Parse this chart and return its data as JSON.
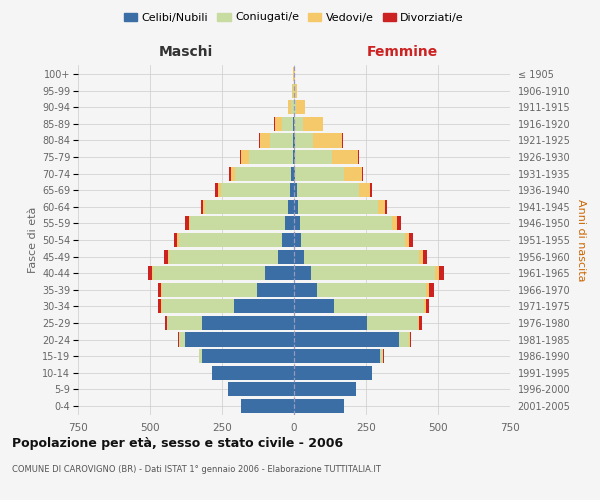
{
  "age_groups": [
    "0-4",
    "5-9",
    "10-14",
    "15-19",
    "20-24",
    "25-29",
    "30-34",
    "35-39",
    "40-44",
    "45-49",
    "50-54",
    "55-59",
    "60-64",
    "65-69",
    "70-74",
    "75-79",
    "80-84",
    "85-89",
    "90-94",
    "95-99",
    "100+"
  ],
  "birth_years": [
    "2001-2005",
    "1996-2000",
    "1991-1995",
    "1986-1990",
    "1981-1985",
    "1976-1980",
    "1971-1975",
    "1966-1970",
    "1961-1965",
    "1956-1960",
    "1951-1955",
    "1946-1950",
    "1941-1945",
    "1936-1940",
    "1931-1935",
    "1926-1930",
    "1921-1925",
    "1916-1920",
    "1911-1915",
    "1906-1910",
    "≤ 1905"
  ],
  "male": {
    "celibe": [
      185,
      230,
      285,
      320,
      380,
      320,
      210,
      130,
      100,
      55,
      40,
      30,
      20,
      15,
      10,
      5,
      3,
      2,
      1,
      0,
      0
    ],
    "coniugato": [
      0,
      0,
      0,
      10,
      20,
      120,
      250,
      330,
      390,
      380,
      360,
      330,
      290,
      240,
      195,
      150,
      80,
      40,
      10,
      3,
      1
    ],
    "vedovo": [
      0,
      0,
      0,
      0,
      0,
      2,
      3,
      3,
      3,
      3,
      5,
      5,
      5,
      10,
      15,
      30,
      35,
      25,
      10,
      3,
      1
    ],
    "divorziato": [
      0,
      0,
      0,
      0,
      2,
      5,
      8,
      10,
      15,
      12,
      10,
      12,
      8,
      8,
      5,
      3,
      2,
      1,
      0,
      0,
      0
    ]
  },
  "female": {
    "nubile": [
      175,
      215,
      270,
      300,
      365,
      255,
      140,
      80,
      60,
      35,
      25,
      20,
      15,
      10,
      5,
      3,
      2,
      1,
      0,
      0,
      0
    ],
    "coniugata": [
      0,
      0,
      0,
      10,
      35,
      175,
      310,
      380,
      430,
      400,
      360,
      320,
      275,
      215,
      170,
      130,
      65,
      30,
      8,
      2,
      0
    ],
    "vedova": [
      0,
      0,
      0,
      0,
      2,
      5,
      8,
      10,
      12,
      12,
      15,
      18,
      25,
      40,
      60,
      90,
      100,
      70,
      30,
      10,
      3
    ],
    "divorziata": [
      0,
      0,
      0,
      2,
      3,
      8,
      10,
      15,
      18,
      15,
      12,
      12,
      8,
      5,
      5,
      3,
      2,
      1,
      0,
      0,
      0
    ]
  },
  "colors": {
    "celibe": "#3a6ea5",
    "coniugato": "#c8dba0",
    "vedovo": "#f5c96a",
    "divorziato": "#cc2222"
  },
  "xlim": 750,
  "title": "Popolazione per età, sesso e stato civile - 2006",
  "subtitle": "COMUNE DI CAROVIGNO (BR) - Dati ISTAT 1° gennaio 2006 - Elaborazione TUTTITALIA.IT",
  "xlabel_left": "Maschi",
  "xlabel_right": "Femmine",
  "ylabel_left": "Fasce di età",
  "ylabel_right": "Anni di nascita",
  "bg_color": "#f5f5f5",
  "grid_color": "#cccccc"
}
